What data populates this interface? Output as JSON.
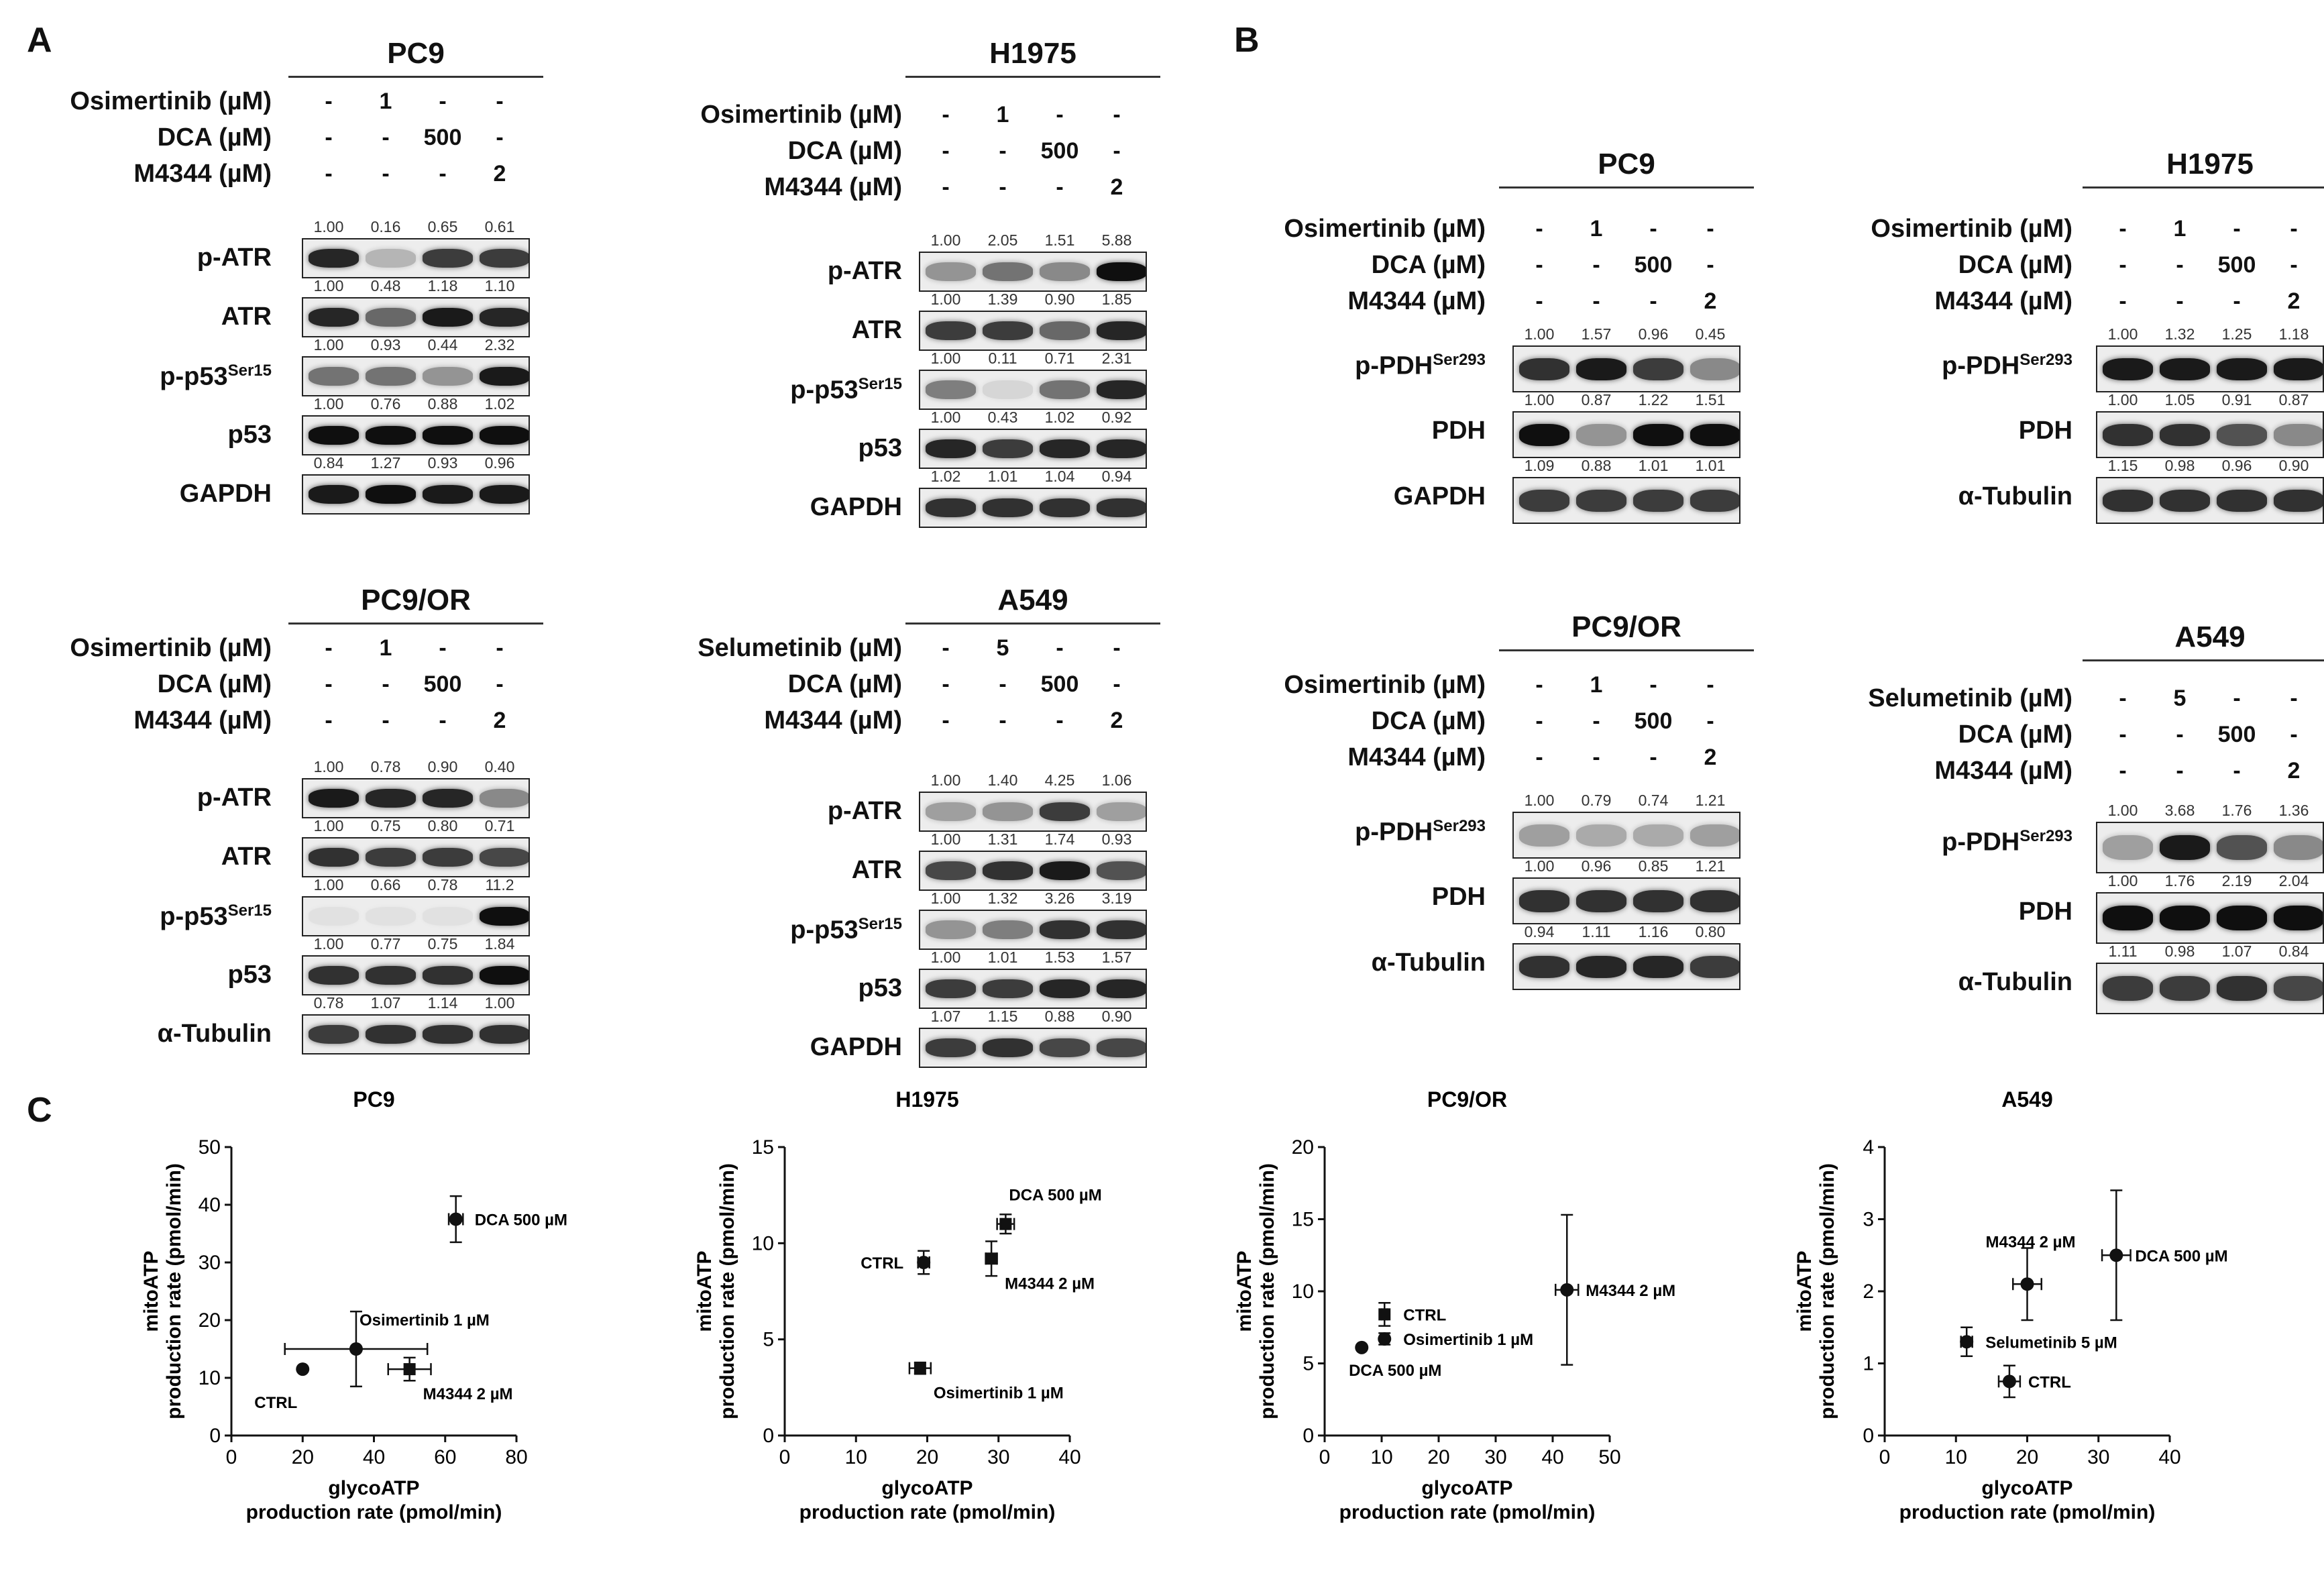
{
  "panel_labels": [
    "A",
    "B",
    "C"
  ],
  "panelA": [
    {
      "title": "PC9",
      "treatments": [
        {
          "label": "Osimertinib (µM)",
          "values": [
            "-",
            "1",
            "-",
            "-"
          ]
        },
        {
          "label": "DCA (µM)",
          "values": [
            "-",
            "-",
            "500",
            "-"
          ]
        },
        {
          "label": "M4344 (µM)",
          "values": [
            "-",
            "-",
            "-",
            "2"
          ]
        }
      ],
      "blots": [
        {
          "name": "p-ATR",
          "sup": "",
          "quant": [
            "1.00",
            "0.16",
            "0.65",
            "0.61"
          ],
          "intensity": [
            0.9,
            0.25,
            0.8,
            0.8
          ]
        },
        {
          "name": "ATR",
          "sup": "",
          "quant": [
            "1.00",
            "0.48",
            "1.18",
            "1.10"
          ],
          "intensity": [
            0.9,
            0.6,
            0.95,
            0.9
          ]
        },
        {
          "name": "p-p53",
          "sup": "Ser15",
          "quant": [
            "1.00",
            "0.93",
            "0.44",
            "2.32"
          ],
          "intensity": [
            0.55,
            0.55,
            0.4,
            0.95
          ]
        },
        {
          "name": "p53",
          "sup": "",
          "quant": [
            "1.00",
            "0.76",
            "0.88",
            "1.02"
          ],
          "intensity": [
            1,
            1,
            1,
            1
          ]
        },
        {
          "name": "GAPDH",
          "sup": "",
          "quant": [
            "0.84",
            "1.27",
            "0.93",
            "0.96"
          ],
          "intensity": [
            0.95,
            1,
            0.95,
            0.95
          ]
        }
      ]
    },
    {
      "title": "H1975",
      "treatments": [
        {
          "label": "Osimertinib (µM)",
          "values": [
            "-",
            "1",
            "-",
            "-"
          ]
        },
        {
          "label": "DCA (µM)",
          "values": [
            "-",
            "-",
            "500",
            "-"
          ]
        },
        {
          "label": "M4344 (µM)",
          "values": [
            "-",
            "-",
            "-",
            "2"
          ]
        }
      ],
      "blots": [
        {
          "name": "p-ATR",
          "sup": "",
          "quant": [
            "1.00",
            "2.05",
            "1.51",
            "5.88"
          ],
          "intensity": [
            0.4,
            0.55,
            0.45,
            1
          ]
        },
        {
          "name": "ATR",
          "sup": "",
          "quant": [
            "1.00",
            "1.39",
            "0.90",
            "1.85"
          ],
          "intensity": [
            0.8,
            0.8,
            0.6,
            0.9
          ]
        },
        {
          "name": "p-p53",
          "sup": "Ser15",
          "quant": [
            "1.00",
            "0.11",
            "0.71",
            "2.31"
          ],
          "intensity": [
            0.5,
            0.1,
            0.55,
            0.9
          ]
        },
        {
          "name": "p53",
          "sup": "",
          "quant": [
            "1.00",
            "0.43",
            "1.02",
            "0.92"
          ],
          "intensity": [
            0.9,
            0.8,
            0.9,
            0.9
          ]
        },
        {
          "name": "GAPDH",
          "sup": "",
          "quant": [
            "1.02",
            "1.01",
            "1.04",
            "0.94"
          ],
          "intensity": [
            0.85,
            0.85,
            0.85,
            0.85
          ]
        }
      ]
    },
    {
      "title": "PC9/OR",
      "treatments": [
        {
          "label": "Osimertinib (µM)",
          "values": [
            "-",
            "1",
            "-",
            "-"
          ]
        },
        {
          "label": "DCA (µM)",
          "values": [
            "-",
            "-",
            "500",
            "-"
          ]
        },
        {
          "label": "M4344 (µM)",
          "values": [
            "-",
            "-",
            "-",
            "2"
          ]
        }
      ],
      "blots": [
        {
          "name": "p-ATR",
          "sup": "",
          "quant": [
            "1.00",
            "0.78",
            "0.90",
            "0.40"
          ],
          "intensity": [
            0.95,
            0.9,
            0.9,
            0.45
          ]
        },
        {
          "name": "ATR",
          "sup": "",
          "quant": [
            "1.00",
            "0.75",
            "0.80",
            "0.71"
          ],
          "intensity": [
            0.85,
            0.8,
            0.8,
            0.75
          ]
        },
        {
          "name": "p-p53",
          "sup": "Ser15",
          "quant": [
            "1.00",
            "0.66",
            "0.78",
            "11.2"
          ],
          "intensity": [
            0.05,
            0.05,
            0.05,
            1
          ]
        },
        {
          "name": "p53",
          "sup": "",
          "quant": [
            "1.00",
            "0.77",
            "0.75",
            "1.84"
          ],
          "intensity": [
            0.85,
            0.85,
            0.85,
            1
          ]
        },
        {
          "name": "α-Tubulin",
          "sup": "",
          "quant": [
            "0.78",
            "1.07",
            "1.14",
            "1.00"
          ],
          "intensity": [
            0.8,
            0.85,
            0.85,
            0.85
          ]
        }
      ]
    },
    {
      "title": "A549",
      "treatments": [
        {
          "label": "Selumetinib (µM)",
          "values": [
            "-",
            "5",
            "-",
            "-"
          ]
        },
        {
          "label": "DCA (µM)",
          "values": [
            "-",
            "-",
            "500",
            "-"
          ]
        },
        {
          "label": "M4344 (µM)",
          "values": [
            "-",
            "-",
            "-",
            "2"
          ]
        }
      ],
      "blots": [
        {
          "name": "p-ATR",
          "sup": "",
          "quant": [
            "1.00",
            "1.40",
            "4.25",
            "1.06"
          ],
          "intensity": [
            0.35,
            0.4,
            0.8,
            0.35
          ]
        },
        {
          "name": "ATR",
          "sup": "",
          "quant": [
            "1.00",
            "1.31",
            "1.74",
            "0.93"
          ],
          "intensity": [
            0.75,
            0.85,
            0.95,
            0.7
          ]
        },
        {
          "name": "p-p53",
          "sup": "Ser15",
          "quant": [
            "1.00",
            "1.32",
            "3.26",
            "3.19"
          ],
          "intensity": [
            0.4,
            0.5,
            0.85,
            0.85
          ]
        },
        {
          "name": "p53",
          "sup": "",
          "quant": [
            "1.00",
            "1.01",
            "1.53",
            "1.57"
          ],
          "intensity": [
            0.8,
            0.8,
            0.9,
            0.9
          ]
        },
        {
          "name": "GAPDH",
          "sup": "",
          "quant": [
            "1.07",
            "1.15",
            "0.88",
            "0.90"
          ],
          "intensity": [
            0.8,
            0.85,
            0.75,
            0.75
          ]
        }
      ]
    }
  ],
  "panelB": [
    {
      "title": "PC9",
      "treatments": [
        {
          "label": "Osimertinib (µM)",
          "values": [
            "-",
            "1",
            "-",
            "-"
          ]
        },
        {
          "label": "DCA (µM)",
          "values": [
            "-",
            "-",
            "500",
            "-"
          ]
        },
        {
          "label": "M4344 (µM)",
          "values": [
            "-",
            "-",
            "-",
            "2"
          ]
        }
      ],
      "blots": [
        {
          "name": "p-PDH",
          "sup": "Ser293",
          "quant": [
            "1.00",
            "1.57",
            "0.96",
            "0.45"
          ],
          "intensity": [
            0.85,
            0.95,
            0.8,
            0.45
          ]
        },
        {
          "name": "PDH",
          "sup": "",
          "quant": [
            "1.00",
            "0.87",
            "1.22",
            "1.51"
          ],
          "intensity": [
            1,
            0.4,
            1,
            1
          ]
        },
        {
          "name": "GAPDH",
          "sup": "",
          "quant": [
            "1.09",
            "0.88",
            "1.01",
            "1.01"
          ],
          "intensity": [
            0.8,
            0.8,
            0.8,
            0.8
          ]
        }
      ]
    },
    {
      "title": "H1975",
      "treatments": [
        {
          "label": "Osimertinib (µM)",
          "values": [
            "-",
            "1",
            "-",
            "-"
          ]
        },
        {
          "label": "DCA (µM)",
          "values": [
            "-",
            "-",
            "500",
            "-"
          ]
        },
        {
          "label": "M4344 (µM)",
          "values": [
            "-",
            "-",
            "-",
            "2"
          ]
        }
      ],
      "blots": [
        {
          "name": "p-PDH",
          "sup": "Ser293",
          "quant": [
            "1.00",
            "1.32",
            "1.25",
            "1.18"
          ],
          "intensity": [
            0.95,
            0.95,
            0.95,
            0.95
          ]
        },
        {
          "name": "PDH",
          "sup": "",
          "quant": [
            "1.00",
            "1.05",
            "0.91",
            "0.87"
          ],
          "intensity": [
            0.85,
            0.85,
            0.7,
            0.45
          ]
        },
        {
          "name": "α-Tubulin",
          "sup": "",
          "quant": [
            "1.15",
            "0.98",
            "0.96",
            "0.90"
          ],
          "intensity": [
            0.85,
            0.85,
            0.85,
            0.85
          ]
        }
      ]
    },
    {
      "title": "PC9/OR",
      "treatments": [
        {
          "label": "Osimertinib (µM)",
          "values": [
            "-",
            "1",
            "-",
            "-"
          ]
        },
        {
          "label": "DCA (µM)",
          "values": [
            "-",
            "-",
            "500",
            "-"
          ]
        },
        {
          "label": "M4344 (µM)",
          "values": [
            "-",
            "-",
            "-",
            "2"
          ]
        }
      ],
      "blots": [
        {
          "name": "p-PDH",
          "sup": "Ser293",
          "quant": [
            "1.00",
            "0.79",
            "0.74",
            "1.21"
          ],
          "intensity": [
            0.35,
            0.3,
            0.3,
            0.35
          ]
        },
        {
          "name": "PDH",
          "sup": "",
          "quant": [
            "1.00",
            "0.96",
            "0.85",
            "1.21"
          ],
          "intensity": [
            0.85,
            0.85,
            0.85,
            0.85
          ]
        },
        {
          "name": "α-Tubulin",
          "sup": "",
          "quant": [
            "0.94",
            "1.11",
            "1.16",
            "0.80"
          ],
          "intensity": [
            0.85,
            0.9,
            0.9,
            0.8
          ]
        }
      ]
    },
    {
      "title": "A549",
      "treatments": [
        {
          "label": "Selumetinib (µM)",
          "values": [
            "-",
            "5",
            "-",
            "-"
          ]
        },
        {
          "label": "DCA (µM)",
          "values": [
            "-",
            "-",
            "500",
            "-"
          ]
        },
        {
          "label": "M4344 (µM)",
          "values": [
            "-",
            "-",
            "-",
            "2"
          ]
        }
      ],
      "blots": [
        {
          "name": "p-PDH",
          "sup": "Ser293",
          "quant": [
            "1.00",
            "3.68",
            "1.76",
            "1.36"
          ],
          "intensity": [
            0.35,
            0.95,
            0.7,
            0.45
          ]
        },
        {
          "name": "PDH",
          "sup": "",
          "quant": [
            "1.00",
            "1.76",
            "2.19",
            "2.04"
          ],
          "intensity": [
            1,
            1,
            1,
            1
          ]
        },
        {
          "name": "α-Tubulin",
          "sup": "",
          "quant": [
            "1.11",
            "0.98",
            "1.07",
            "0.84"
          ],
          "intensity": [
            0.8,
            0.8,
            0.85,
            0.75
          ]
        }
      ]
    }
  ],
  "chart_data": [
    {
      "type": "scatter",
      "title": "PC9",
      "xlabel": [
        "glycoATP",
        "production rate (pmol/min)"
      ],
      "ylabel": [
        "mitoATP",
        "production rate (pmol/min)"
      ],
      "xlim": [
        0,
        80
      ],
      "ylim": [
        0,
        50
      ],
      "xticks": [
        0,
        20,
        40,
        60,
        80
      ],
      "yticks": [
        0,
        10,
        20,
        30,
        40,
        50
      ],
      "points": [
        {
          "label": "CTRL",
          "x": 20,
          "y": 11.5,
          "xerr": 0,
          "yerr": 0,
          "marker": "circle",
          "label_pos": "bottom-left"
        },
        {
          "label": "Osimertinib 1 µM",
          "x": 35,
          "y": 15,
          "xerr": 20,
          "yerr": 6.5,
          "marker": "circle",
          "label_pos": "top-right"
        },
        {
          "label": "M4344 2 µM",
          "x": 50,
          "y": 11.5,
          "xerr": 6,
          "yerr": 2,
          "marker": "square",
          "label_pos": "bottom-right"
        },
        {
          "label": "DCA 500 µM",
          "x": 63,
          "y": 37.5,
          "xerr": 2,
          "yerr": 4,
          "marker": "circle",
          "label_pos": "right"
        }
      ]
    },
    {
      "type": "scatter",
      "title": "H1975",
      "xlabel": [
        "glycoATP",
        "production rate (pmol/min)"
      ],
      "ylabel": [
        "mitoATP",
        "production rate (pmol/min)"
      ],
      "xlim": [
        0,
        40
      ],
      "ylim": [
        0,
        15
      ],
      "xticks": [
        0,
        10,
        20,
        30,
        40
      ],
      "yticks": [
        0,
        5,
        10,
        15
      ],
      "points": [
        {
          "label": "CTRL",
          "x": 19.5,
          "y": 9.0,
          "xerr": 0.8,
          "yerr": 0.6,
          "marker": "circle",
          "label_pos": "left"
        },
        {
          "label": "M4344 2 µM",
          "x": 29,
          "y": 9.2,
          "xerr": 0.8,
          "yerr": 0.9,
          "marker": "square",
          "label_pos": "bottom-right"
        },
        {
          "label": "DCA 500 µM",
          "x": 31,
          "y": 11.0,
          "xerr": 1.2,
          "yerr": 0.5,
          "marker": "square",
          "label_pos": "top-right"
        },
        {
          "label": "Osimertinib 1 µM",
          "x": 19,
          "y": 3.5,
          "xerr": 1.5,
          "yerr": 0.3,
          "marker": "square",
          "label_pos": "bottom-right"
        }
      ]
    },
    {
      "type": "scatter",
      "title": "PC9/OR",
      "xlabel": [
        "glycoATP",
        "production rate (pmol/min)"
      ],
      "ylabel": [
        "mitoATP",
        "production rate (pmol/min)"
      ],
      "xlim": [
        0,
        50
      ],
      "ylim": [
        0,
        20
      ],
      "xticks": [
        0,
        10,
        20,
        30,
        40,
        50
      ],
      "yticks": [
        0,
        5,
        10,
        15,
        20
      ],
      "points": [
        {
          "label": "CTRL",
          "x": 10.5,
          "y": 8.4,
          "xerr": 0.5,
          "yerr": 0.8,
          "marker": "square",
          "label_pos": "right"
        },
        {
          "label": "Osimertinib 1 µM",
          "x": 10.5,
          "y": 6.7,
          "xerr": 0.6,
          "yerr": 0.4,
          "marker": "circle",
          "label_pos": "right"
        },
        {
          "label": "DCA 500 µM",
          "x": 6.5,
          "y": 6.1,
          "xerr": 0,
          "yerr": 0,
          "marker": "circle",
          "label_pos": "bottom"
        },
        {
          "label": "M4344 2 µM",
          "x": 42.5,
          "y": 10.1,
          "xerr": 2,
          "yerr": 5.2,
          "marker": "circle",
          "label_pos": "right"
        }
      ]
    },
    {
      "type": "scatter",
      "title": "A549",
      "xlabel": [
        "glycoATP",
        "production rate (pmol/min)"
      ],
      "ylabel": [
        "mitoATP",
        "production rate (pmol/min)"
      ],
      "xlim": [
        0,
        40
      ],
      "ylim": [
        0,
        4
      ],
      "xticks": [
        0,
        10,
        20,
        30,
        40
      ],
      "yticks": [
        0,
        1,
        2,
        3,
        4
      ],
      "points": [
        {
          "label": "Selumetinib 5 µM",
          "x": 11.5,
          "y": 1.3,
          "xerr": 0.8,
          "yerr": 0.2,
          "marker": "circle",
          "label_pos": "right"
        },
        {
          "label": "CTRL",
          "x": 17.5,
          "y": 0.75,
          "xerr": 1.5,
          "yerr": 0.22,
          "marker": "circle",
          "label_pos": "right"
        },
        {
          "label": "M4344 2 µM",
          "x": 20,
          "y": 2.1,
          "xerr": 2,
          "yerr": 0.5,
          "marker": "circle",
          "label_pos": "top"
        },
        {
          "label": "DCA 500 µM",
          "x": 32.5,
          "y": 2.5,
          "xerr": 2,
          "yerr": 0.9,
          "marker": "circle",
          "label_pos": "right"
        }
      ]
    }
  ]
}
